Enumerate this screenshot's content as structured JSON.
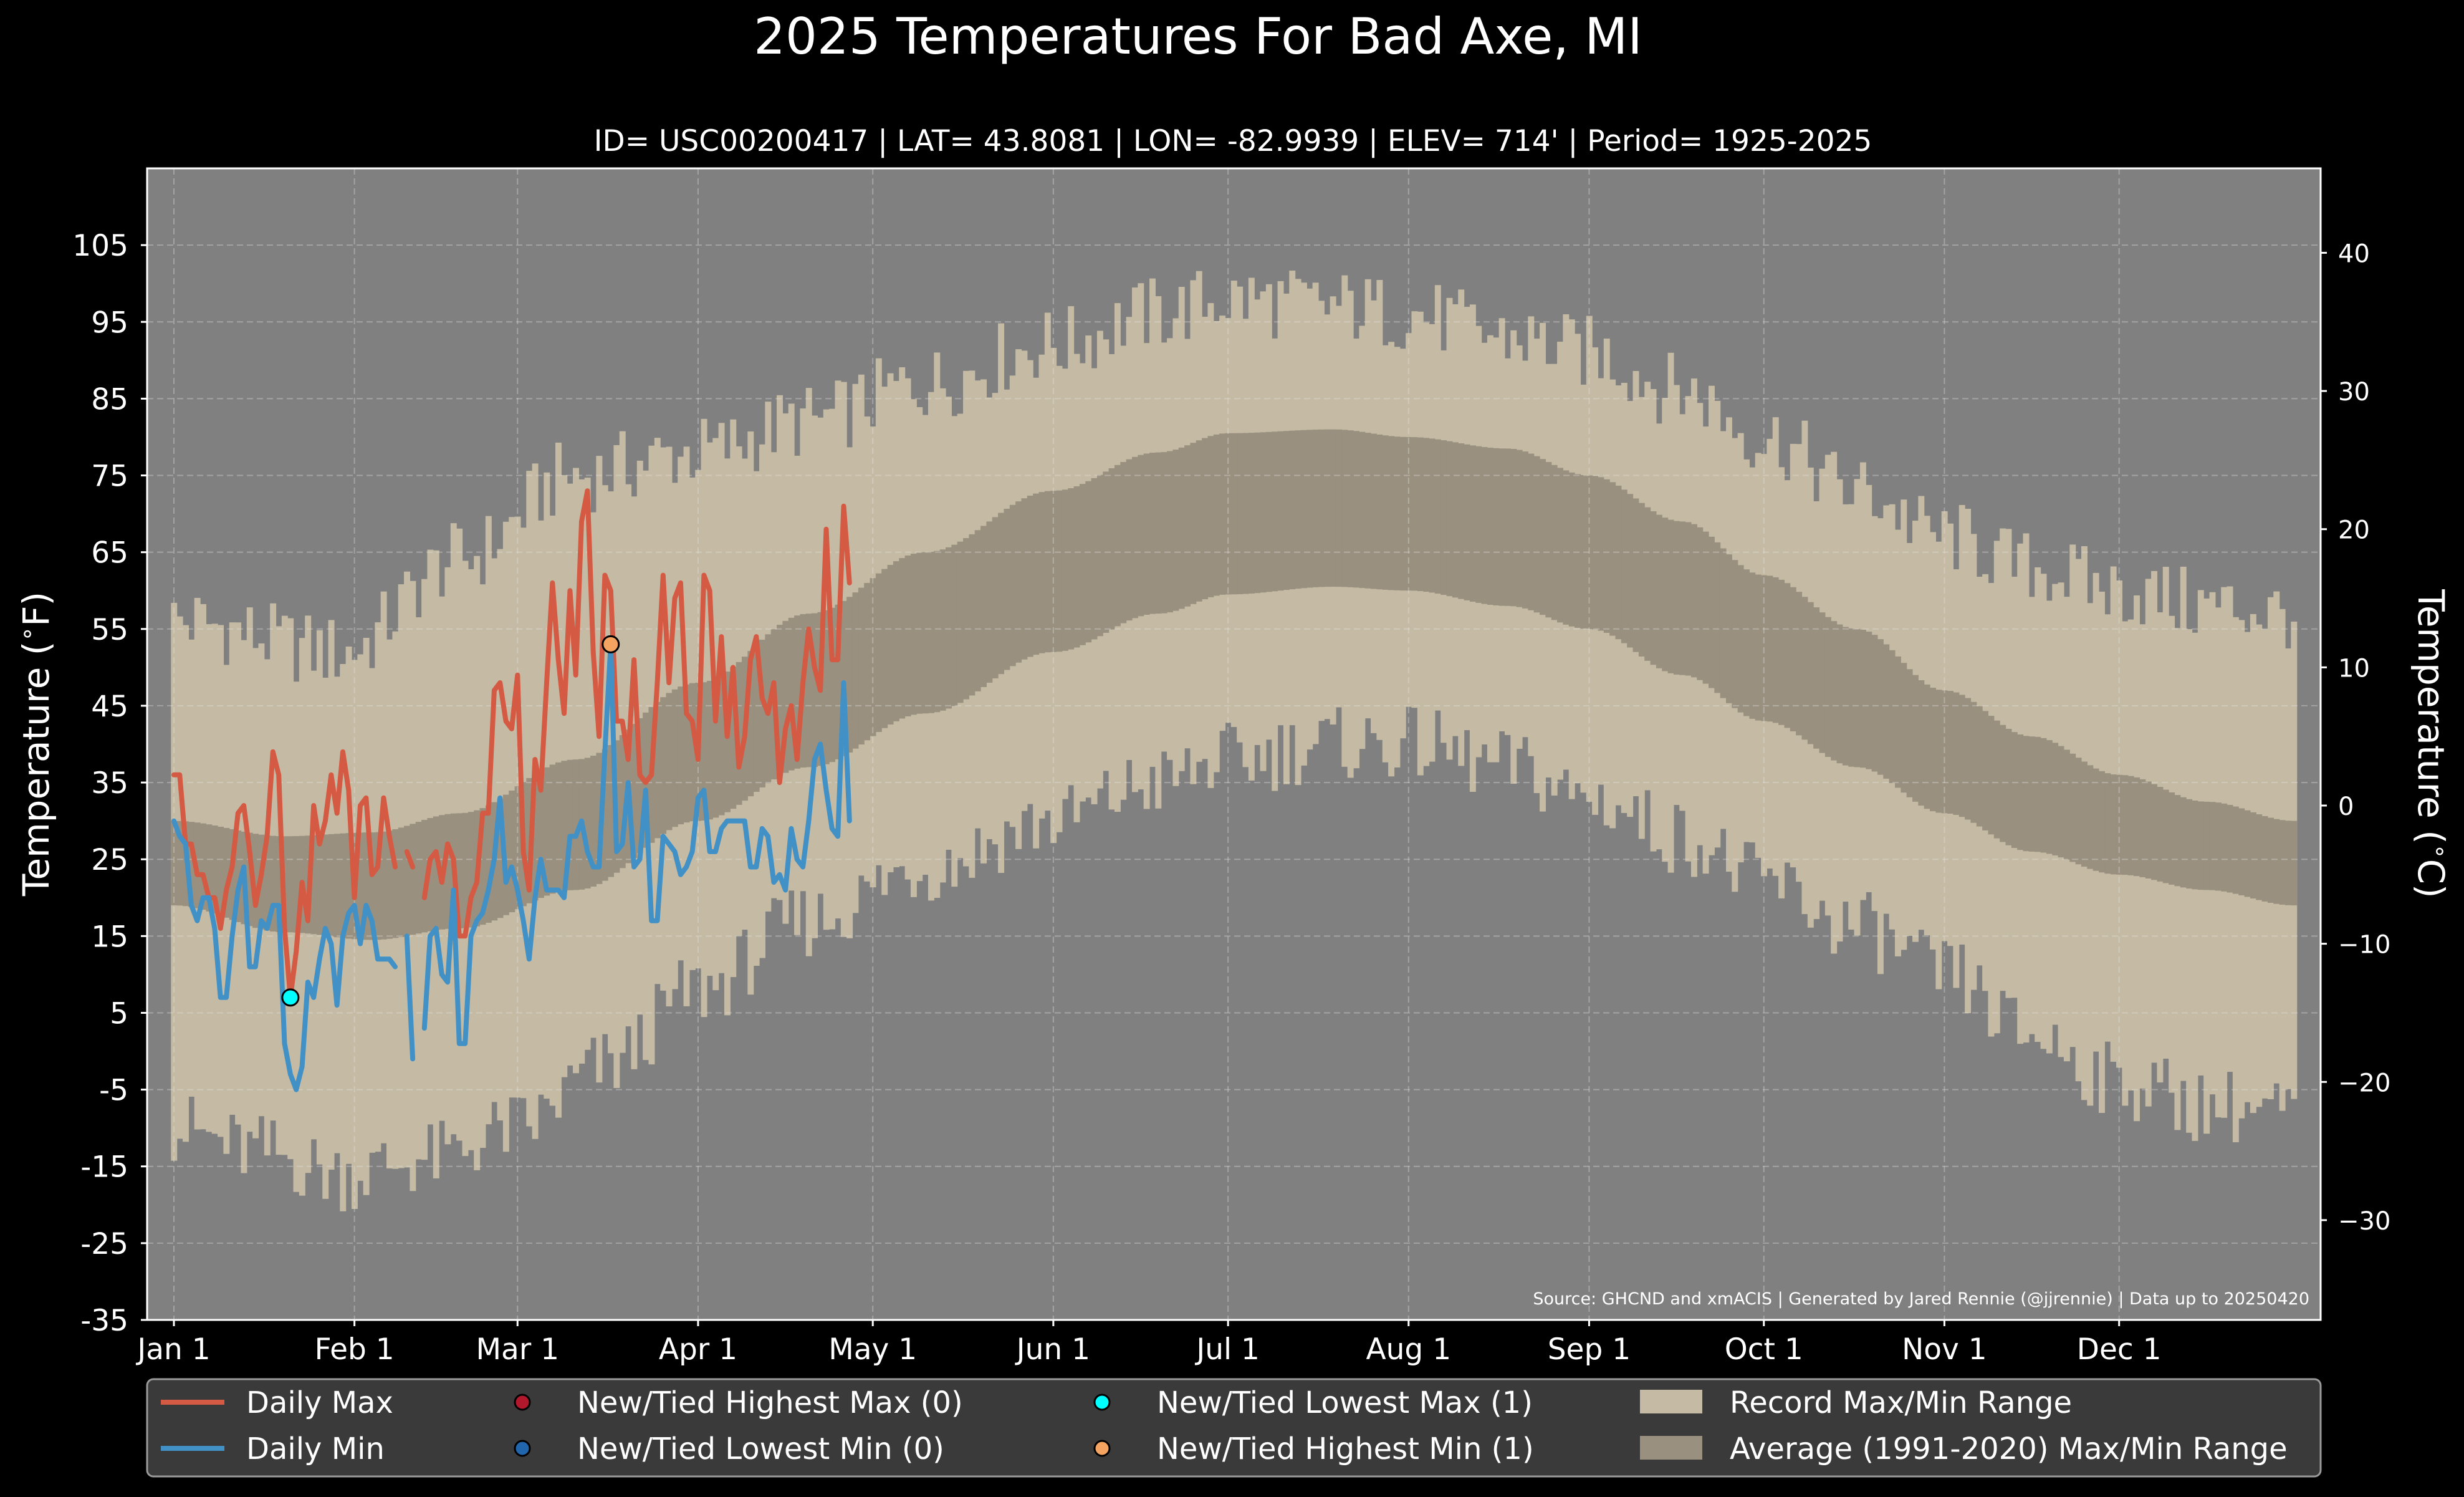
{
  "chart_data": {
    "type": "line",
    "title": "2025 Temperatures For Bad Axe, MI",
    "subtitle": "ID= USC00200417 | LAT= 43.8081 | LON= -82.9939 | ELEV= 714' | Period= 1925-2025",
    "ylabel_left": "Temperature ($^\\circ$F)",
    "ylabel_left_text": "Temperature (",
    "ylabel_left_unit": "F)",
    "ylabel_right_text": "Temperature (",
    "ylabel_right_unit": "C)",
    "source": "Source: GHCND and xmACIS | Generated by Jared Rennie (@jjrennie) | Data up to 20250420",
    "ylim_f": [
      -35,
      115
    ],
    "xlim_days": [
      1,
      365
    ],
    "y_ticks_f": [
      105,
      95,
      85,
      75,
      65,
      55,
      45,
      35,
      25,
      15,
      5,
      -5,
      -15,
      -25,
      -35
    ],
    "y_ticks_f_labels": [
      "105",
      "95",
      "85",
      "75",
      "65",
      "55",
      "45",
      "35",
      "25",
      "15",
      "5",
      "-5",
      "-15",
      "-25",
      "-35"
    ],
    "y_ticks_c": [
      40,
      30,
      20,
      10,
      0,
      -10,
      -20,
      -30
    ],
    "y_ticks_c_labels": [
      "40",
      "30",
      "20",
      "10",
      "0",
      "−10",
      "−20",
      "−30"
    ],
    "x_ticks": [
      {
        "day": 1,
        "label": "Jan 1"
      },
      {
        "day": 32,
        "label": "Feb 1"
      },
      {
        "day": 60,
        "label": "Mar 1"
      },
      {
        "day": 91,
        "label": "Apr 1"
      },
      {
        "day": 121,
        "label": "May 1"
      },
      {
        "day": 152,
        "label": "Jun 1"
      },
      {
        "day": 182,
        "label": "Jul 1"
      },
      {
        "day": 213,
        "label": "Aug 1"
      },
      {
        "day": 244,
        "label": "Sep 1"
      },
      {
        "day": 274,
        "label": "Oct 1"
      },
      {
        "day": 305,
        "label": "Nov 1"
      },
      {
        "day": 335,
        "label": "Dec 1"
      }
    ],
    "grid": true,
    "colors": {
      "background": "#000000",
      "plot_bg": "#808080",
      "record_range": "#c5bba4",
      "normal_range": "#99907f",
      "daily_max": "#d45a44",
      "daily_min": "#4191c6",
      "highest_max": "#b2182b",
      "lowest_min": "#2166ac",
      "lowest_max": "#00ffff",
      "highest_min": "#f4a460",
      "legend_bg": "#3a3a3a"
    },
    "record_max_anchors": [
      [
        1,
        56
      ],
      [
        30,
        52
      ],
      [
        50,
        64
      ],
      [
        70,
        75
      ],
      [
        91,
        78
      ],
      [
        110,
        82
      ],
      [
        130,
        87
      ],
      [
        152,
        92
      ],
      [
        170,
        96
      ],
      [
        182,
        98
      ],
      [
        200,
        97
      ],
      [
        213,
        96
      ],
      [
        230,
        93
      ],
      [
        244,
        91
      ],
      [
        260,
        86
      ],
      [
        274,
        80
      ],
      [
        290,
        73
      ],
      [
        305,
        67
      ],
      [
        320,
        63
      ],
      [
        335,
        60
      ],
      [
        350,
        58
      ],
      [
        365,
        57
      ]
    ],
    "record_min_anchors": [
      [
        1,
        -10
      ],
      [
        15,
        -13
      ],
      [
        30,
        -16
      ],
      [
        45,
        -14
      ],
      [
        60,
        -10
      ],
      [
        75,
        -2
      ],
      [
        91,
        8
      ],
      [
        110,
        17
      ],
      [
        130,
        24
      ],
      [
        152,
        30
      ],
      [
        170,
        35
      ],
      [
        182,
        38
      ],
      [
        200,
        40
      ],
      [
        213,
        40
      ],
      [
        230,
        37
      ],
      [
        244,
        33
      ],
      [
        260,
        28
      ],
      [
        274,
        22
      ],
      [
        290,
        16
      ],
      [
        305,
        10
      ],
      [
        320,
        2
      ],
      [
        335,
        -4
      ],
      [
        350,
        -7
      ],
      [
        365,
        -8
      ]
    ],
    "normal_max_anchors": [
      [
        1,
        30
      ],
      [
        20,
        28
      ],
      [
        35,
        28.5
      ],
      [
        50,
        31
      ],
      [
        70,
        38
      ],
      [
        91,
        48
      ],
      [
        110,
        57
      ],
      [
        130,
        65
      ],
      [
        152,
        73
      ],
      [
        170,
        78
      ],
      [
        182,
        80.5
      ],
      [
        200,
        81
      ],
      [
        213,
        80
      ],
      [
        230,
        78.5
      ],
      [
        244,
        75
      ],
      [
        260,
        69
      ],
      [
        274,
        62
      ],
      [
        290,
        55
      ],
      [
        305,
        47
      ],
      [
        320,
        41
      ],
      [
        335,
        36
      ],
      [
        350,
        32.5
      ],
      [
        365,
        30
      ]
    ],
    "normal_min_anchors": [
      [
        1,
        19
      ],
      [
        20,
        15.5
      ],
      [
        35,
        14.5
      ],
      [
        50,
        16
      ],
      [
        70,
        21
      ],
      [
        91,
        30
      ],
      [
        110,
        37
      ],
      [
        130,
        44
      ],
      [
        152,
        52
      ],
      [
        170,
        57
      ],
      [
        182,
        59.5
      ],
      [
        200,
        60.5
      ],
      [
        213,
        60
      ],
      [
        230,
        58
      ],
      [
        244,
        55
      ],
      [
        260,
        49
      ],
      [
        274,
        43
      ],
      [
        290,
        37
      ],
      [
        305,
        31
      ],
      [
        320,
        26
      ],
      [
        335,
        23
      ],
      [
        350,
        21
      ],
      [
        365,
        19
      ]
    ],
    "series": [
      {
        "name": "Daily Max",
        "values": [
          36,
          36,
          27,
          27,
          23,
          23,
          20,
          20,
          16,
          21,
          24,
          31,
          32,
          26,
          19,
          23,
          28,
          39,
          36,
          16,
          7,
          13,
          22,
          17,
          32,
          27,
          30,
          36,
          31,
          39,
          34,
          20,
          32,
          33,
          23,
          24,
          33,
          28,
          24,
          null,
          26,
          24,
          null,
          20,
          25,
          26,
          22,
          27,
          25,
          15,
          15,
          20,
          22,
          31,
          31,
          47,
          48,
          43,
          42,
          49,
          26,
          21,
          38,
          34,
          48,
          61,
          51,
          44,
          60,
          49,
          69,
          73,
          52,
          41,
          62,
          60,
          43,
          43,
          38,
          51,
          36,
          35,
          36,
          48,
          62,
          48,
          59,
          61,
          44,
          43,
          38,
          62,
          60,
          43,
          54,
          41,
          50,
          37,
          41,
          51,
          54,
          46,
          44,
          48,
          35,
          42,
          45,
          38,
          48,
          55,
          50,
          47,
          68,
          51,
          51,
          71,
          61
        ]
      },
      {
        "name": "Daily Min",
        "values": [
          30,
          28,
          27,
          19,
          17,
          20,
          20,
          16,
          7,
          7,
          15,
          21,
          24,
          11,
          11,
          17,
          16,
          19,
          19,
          1,
          -3,
          -5,
          -2,
          9,
          7,
          12,
          16,
          14,
          6,
          15,
          18,
          19,
          14,
          19,
          17,
          12,
          12,
          12,
          11,
          null,
          15,
          -1,
          null,
          3,
          15,
          16,
          10,
          9,
          21,
          1,
          1,
          15,
          17,
          18,
          21,
          25,
          33,
          22,
          24,
          21,
          17,
          12,
          20,
          25,
          21,
          21,
          21,
          20,
          28,
          28,
          30,
          26,
          24,
          24,
          39,
          53,
          26,
          27,
          35,
          24,
          25,
          34,
          17,
          17,
          28,
          27,
          26,
          23,
          24,
          26,
          33,
          34,
          26,
          26,
          29,
          30,
          30,
          30,
          30,
          24,
          24,
          29,
          28,
          22,
          23,
          21,
          29,
          25,
          24,
          30,
          38,
          40,
          34,
          29,
          28,
          48,
          30
        ]
      }
    ],
    "record_points": [
      {
        "name": "New/Tied Lowest Max (1)",
        "day": 21,
        "value": 7
      },
      {
        "name": "New/Tied Highest Min (1)",
        "day": 76,
        "value": 53
      }
    ],
    "legend": {
      "placement": "bottom",
      "entries": [
        {
          "label": "Daily Max",
          "kind": "line",
          "color": "#d45a44"
        },
        {
          "label": "Daily Min",
          "kind": "line",
          "color": "#4191c6"
        },
        {
          "label": "New/Tied Highest Max (0)",
          "kind": "marker",
          "color": "#b2182b"
        },
        {
          "label": "New/Tied Lowest Min (0)",
          "kind": "marker",
          "color": "#2166ac"
        },
        {
          "label": "New/Tied Lowest Max (1)",
          "kind": "marker",
          "color": "#00ffff"
        },
        {
          "label": "New/Tied Highest Min (1)",
          "kind": "marker",
          "color": "#f4a460"
        },
        {
          "label": "Record Max/Min Range",
          "kind": "patch",
          "color": "#c5bba4"
        },
        {
          "label": "Average (1991-2020) Max/Min Range",
          "kind": "patch",
          "color": "#99907f"
        }
      ]
    }
  }
}
